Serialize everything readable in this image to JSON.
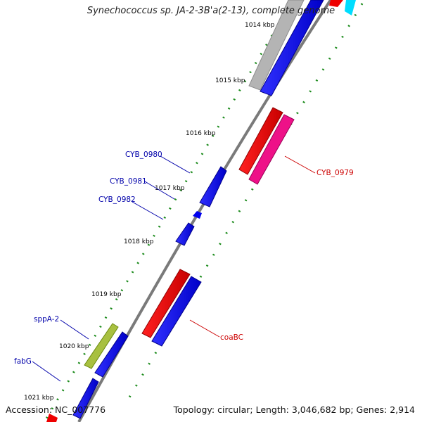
{
  "title": "Synechococcus sp. JA-2-3B'a(2-13), complete genome",
  "footer": {
    "accession": "Accession: NC_007776",
    "topology": "Topology: circular; Length: 3,046,682 bp; Genes: 2,914"
  },
  "ticks": [
    "1014 kbp",
    "1015 kbp",
    "1016 kbp",
    "1017 kbp",
    "1018 kbp",
    "1019 kbp",
    "1020 kbp",
    "1021 kbp"
  ],
  "genes": {
    "CYB_0979": "CYB_0979",
    "CYB_0980": "CYB_0980",
    "CYB_0981": "CYB_0981",
    "CYB_0982": "CYB_0982",
    "coaBC": "coaBC",
    "sppA-2": "sppA-2",
    "fabG": "fabG"
  },
  "colors": {
    "forward_gene": "#0000ee",
    "reverse_gene": "#ee0000",
    "rna_gene": "#ee1188",
    "other_gene": "#b0b0b0",
    "label_blue": "#0000aa",
    "label_red": "#cc0000",
    "tick_green": "#1a8a1a",
    "backbone": "#7a7a7a"
  }
}
